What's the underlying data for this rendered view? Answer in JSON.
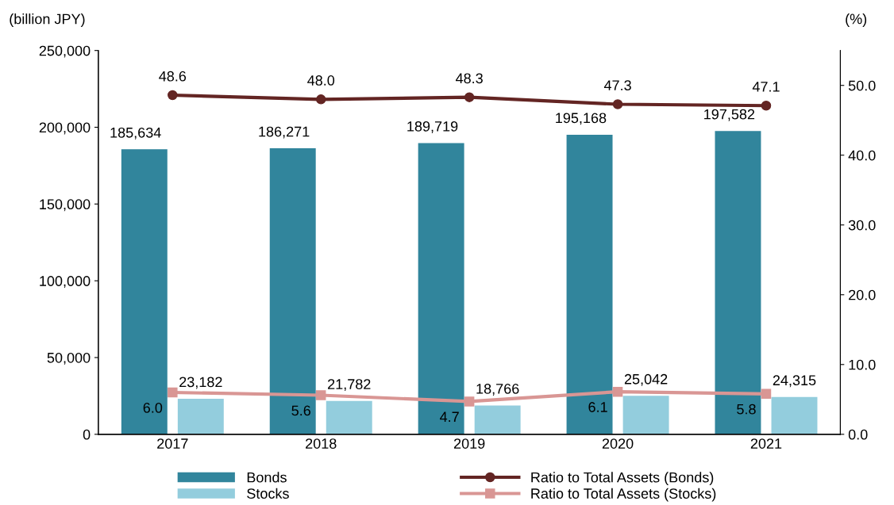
{
  "chart_data": {
    "type": "bar",
    "ylabel": "(billion JPY)",
    "y2label": "(%)",
    "categories": [
      "2017",
      "2018",
      "2019",
      "2020",
      "2021"
    ],
    "series": [
      {
        "name": "Bonds",
        "color": "#31859c",
        "values": [
          185634,
          186271,
          189719,
          195168,
          197582
        ]
      },
      {
        "name": "Stocks",
        "color": "#93cddd",
        "values": [
          23182,
          21782,
          18766,
          25042,
          24315
        ]
      },
      {
        "name": "Ratio to Total Assets (Bonds)",
        "type": "line",
        "axis": "y2",
        "color": "#632523",
        "marker": "circle",
        "values": [
          48.6,
          48.0,
          48.3,
          47.3,
          47.1
        ]
      },
      {
        "name": "Ratio to Total Assets (Stocks)",
        "type": "line",
        "axis": "y2",
        "color": "#d99694",
        "marker": "square",
        "values": [
          6.0,
          5.6,
          4.7,
          6.1,
          5.8
        ]
      }
    ],
    "ylim": [
      0,
      250000
    ],
    "yticks": [
      {
        "value": 0,
        "label": "0"
      },
      {
        "value": 50000,
        "label": "50,000"
      },
      {
        "value": 100000,
        "label": "100,000"
      },
      {
        "value": 150000,
        "label": "150,000"
      },
      {
        "value": 200000,
        "label": "200,000"
      },
      {
        "value": 250000,
        "label": "250,000"
      }
    ],
    "y2lim": [
      0,
      55
    ],
    "y2ticks": [
      {
        "value": 0,
        "label": "0.0"
      },
      {
        "value": 10,
        "label": "10.0"
      },
      {
        "value": 20,
        "label": "20.0"
      },
      {
        "value": 30,
        "label": "30.0"
      },
      {
        "value": 40,
        "label": "40.0"
      },
      {
        "value": 50,
        "label": "50.0"
      }
    ],
    "value_labels": [
      [
        "185,634",
        "186,271",
        "189,719",
        "195,168",
        "197,582"
      ],
      [
        "23,182",
        "21,782",
        "18,766",
        "25,042",
        "24,315"
      ],
      [
        "48.6",
        "48.0",
        "48.3",
        "47.3",
        "47.1"
      ],
      [
        "6.0",
        "5.6",
        "4.7",
        "6.1",
        "5.8"
      ]
    ],
    "grid": false,
    "legend": "bottom"
  }
}
